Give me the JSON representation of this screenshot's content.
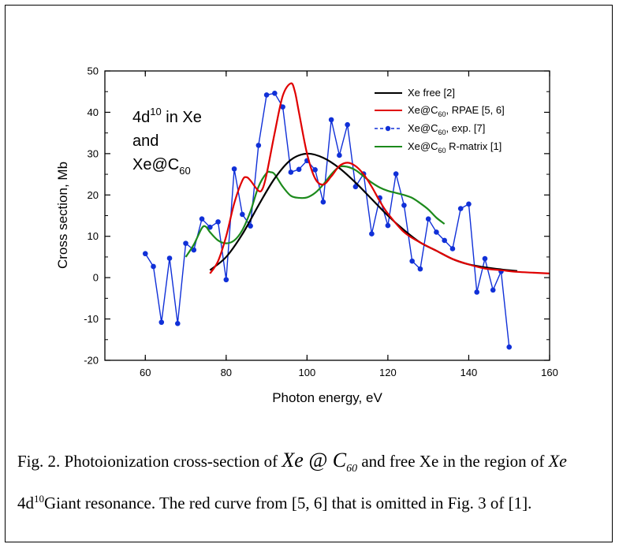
{
  "chart_data": {
    "type": "line",
    "xlabel": "Photon energy, eV",
    "ylabel": "Cross section, Mb",
    "xlim": [
      50,
      160
    ],
    "ylim": [
      -20,
      50
    ],
    "xticks": [
      60,
      80,
      100,
      120,
      140,
      160
    ],
    "yticks": [
      -20,
      -10,
      0,
      10,
      20,
      30,
      40,
      50
    ],
    "inset_text": {
      "line1_main": "4d",
      "line1_sup": "10",
      "line1_tail": " in Xe",
      "line2": "and",
      "line3_main": "Xe@C",
      "line3_sub": "60"
    },
    "legend_position": "top-right",
    "series": [
      {
        "name": "Xe free [2]",
        "color": "#000000",
        "style": "line",
        "x": [
          76,
          80,
          84,
          88,
          92,
          96,
          100,
          104,
          108,
          112,
          116,
          120,
          124,
          128,
          132,
          136,
          140,
          144,
          148,
          152
        ],
        "y": [
          1.8,
          5.0,
          10.5,
          17.5,
          24.0,
          28.5,
          30.0,
          29.0,
          26.5,
          23.0,
          19.0,
          15.0,
          11.5,
          8.5,
          6.5,
          4.5,
          3.2,
          2.5,
          2.0,
          1.6
        ]
      },
      {
        "name": "Xe@C60, RPAE [5, 6]",
        "name_main": "Xe@C",
        "name_sub": "60",
        "name_tail": ", RPAE [5, 6]",
        "color": "#e00000",
        "style": "line",
        "x": [
          76,
          78,
          80,
          82,
          84,
          85,
          86,
          88,
          89,
          90,
          92,
          94,
          96,
          97,
          98,
          100,
          102,
          104,
          106,
          108,
          110,
          112,
          114,
          116,
          118,
          120,
          124,
          128,
          132,
          136,
          140,
          144,
          148,
          152,
          156,
          160
        ],
        "y": [
          1.0,
          4.0,
          10.0,
          18.0,
          23.5,
          24.3,
          23.5,
          21.0,
          21.5,
          25.0,
          35.0,
          44.0,
          47.0,
          45.0,
          40.0,
          30.0,
          24.0,
          22.5,
          24.5,
          27.0,
          27.8,
          27.0,
          25.0,
          22.0,
          18.5,
          15.5,
          11.0,
          8.5,
          6.5,
          4.5,
          3.2,
          2.2,
          1.8,
          1.4,
          1.2,
          1.0
        ]
      },
      {
        "name": "Xe@C60, exp. [7]",
        "name_main": "Xe@C",
        "name_sub": "60",
        "name_tail": ", exp. [7]",
        "color": "#1030d8",
        "style": "line+marker",
        "x": [
          60,
          62,
          64,
          66,
          68,
          70,
          72,
          74,
          76,
          78,
          80,
          82,
          84,
          86,
          88,
          90,
          92,
          94,
          96,
          98,
          100,
          102,
          104,
          106,
          108,
          110,
          112,
          114,
          116,
          118,
          120,
          122,
          124,
          126,
          128,
          130,
          132,
          134,
          136,
          138,
          140,
          142,
          144,
          146,
          148,
          150
        ],
        "y": [
          5.8,
          2.7,
          -10.8,
          4.7,
          -11.1,
          8.3,
          6.7,
          14.2,
          12.2,
          13.5,
          -0.5,
          26.3,
          15.3,
          12.5,
          32.0,
          44.2,
          44.6,
          41.3,
          25.5,
          26.2,
          28.3,
          26.1,
          18.3,
          38.2,
          29.6,
          37.0,
          22.0,
          25.1,
          10.6,
          19.3,
          12.6,
          25.1,
          17.5,
          4.0,
          2.1,
          14.2,
          11.0,
          9.0,
          7.0,
          16.7,
          17.8,
          -3.5,
          4.6,
          -3.0,
          1.5,
          -16.8
        ]
      },
      {
        "name": "Xe@C60 R-matrix [1]",
        "name_main": "Xe@C",
        "name_sub": "60",
        "name_tail": " R-matrix [1]",
        "color": "#1c8a1c",
        "style": "line",
        "x": [
          70,
          72,
          74,
          75,
          76,
          78,
          80,
          82,
          84,
          86,
          88,
          90,
          91,
          92,
          94,
          96,
          98,
          100,
          102,
          104,
          106,
          108,
          110,
          112,
          114,
          116,
          118,
          120,
          122,
          124,
          126,
          128,
          130,
          132,
          134
        ],
        "y": [
          5.0,
          8.0,
          12.0,
          12.3,
          11.0,
          9.0,
          8.3,
          9.0,
          11.5,
          16.0,
          22.0,
          25.3,
          25.5,
          25.0,
          22.0,
          19.8,
          19.3,
          19.4,
          20.5,
          22.5,
          25.0,
          26.8,
          26.8,
          26.0,
          24.5,
          23.0,
          21.8,
          21.0,
          20.5,
          20.0,
          19.3,
          18.0,
          16.5,
          14.5,
          13.0
        ]
      }
    ]
  },
  "caption": {
    "prefix": "Fig. 2. Photoionization cross-section of",
    "sym_main": "Xe @ C",
    "sym_sub": "60",
    "middle": "and free Xe in the region of",
    "sym2": "Xe",
    "shell_main": "4d",
    "shell_sup": "10",
    "suffix": "Giant resonance. The red curve from [5, 6] that is omitted in Fig. 3 of [1]."
  }
}
